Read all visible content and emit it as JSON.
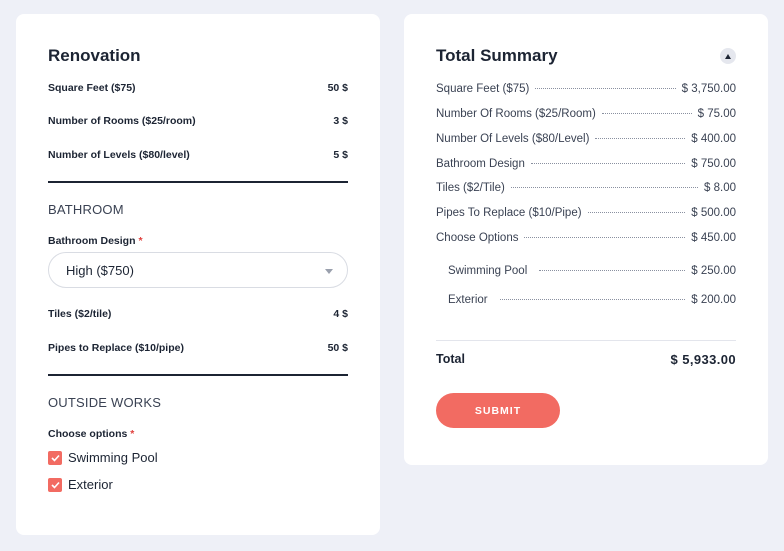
{
  "renovation": {
    "title": "Renovation",
    "rows": [
      {
        "label": "Square Feet ($75)",
        "value": "50 $"
      },
      {
        "label": "Number of Rooms ($25/room)",
        "value": "3 $"
      },
      {
        "label": "Number of Levels ($80/level)",
        "value": "5 $"
      }
    ]
  },
  "bathroom": {
    "title": "BATHROOM",
    "design_label": "Bathroom Design",
    "required_mark": "*",
    "design_selected": "High ($750)",
    "rows": [
      {
        "label": "Tiles ($2/tile)",
        "value": "4 $"
      },
      {
        "label": "Pipes to Replace ($10/pipe)",
        "value": "50 $"
      }
    ]
  },
  "outside": {
    "title": "OUTSIDE WORKS",
    "options_label": "Choose options",
    "required_mark": "*",
    "options": [
      {
        "label": "Swimming Pool",
        "checked": true
      },
      {
        "label": "Exterior",
        "checked": true
      }
    ]
  },
  "summary": {
    "title": "Total Summary",
    "items": [
      {
        "label": "Square Feet ($75)",
        "value": "$ 3,750.00"
      },
      {
        "label": "Number Of Rooms ($25/Room)",
        "value": "$ 75.00"
      },
      {
        "label": "Number Of Levels ($80/Level)",
        "value": "$ 400.00"
      },
      {
        "label": "Bathroom Design",
        "value": "$ 750.00"
      },
      {
        "label": "Tiles ($2/Tile)",
        "value": "$ 8.00"
      },
      {
        "label": "Pipes To Replace ($10/Pipe)",
        "value": "$ 500.00"
      },
      {
        "label": "Choose Options",
        "value": "$ 450.00"
      }
    ],
    "sub_items": [
      {
        "label": "Swimming Pool",
        "value": "$ 250.00"
      },
      {
        "label": "Exterior",
        "value": "$ 200.00"
      }
    ],
    "total_label": "Total",
    "total_value": "$ 5,933.00",
    "submit_label": "SUBMIT"
  },
  "colors": {
    "accent": "#f26b62",
    "background": "#eef0f7",
    "text": "#1c2433"
  }
}
